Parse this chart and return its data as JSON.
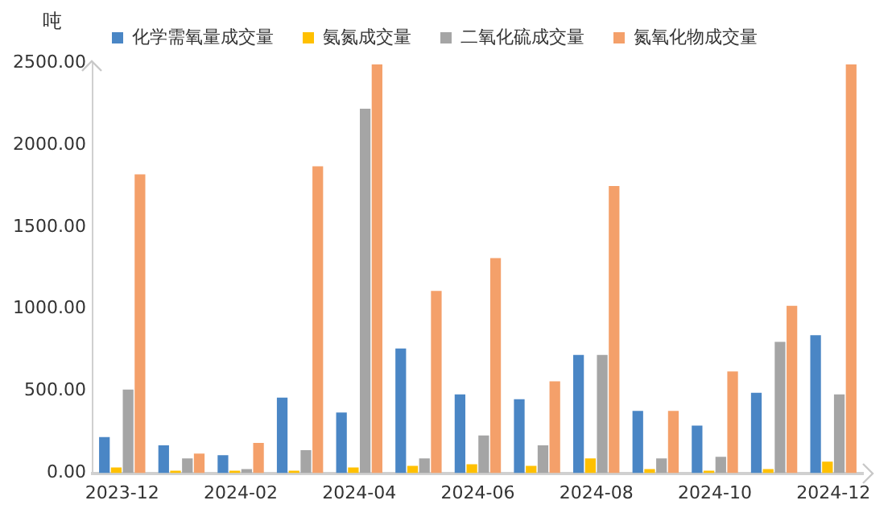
{
  "chart_data": {
    "type": "bar",
    "ylabel": "吨",
    "categories": [
      "2023-12",
      null,
      "2024-02",
      null,
      "2024-04",
      null,
      "2024-06",
      null,
      "2024-08",
      null,
      "2024-10",
      null,
      "2024-12"
    ],
    "series": [
      {
        "name": "化学需氧量成交量",
        "color": "#4a86c5",
        "values": [
          220,
          170,
          110,
          460,
          370,
          760,
          480,
          450,
          720,
          380,
          290,
          490,
          840
        ]
      },
      {
        "name": "氨氮成交量",
        "color": "#ffc000",
        "values": [
          35,
          15,
          15,
          15,
          35,
          45,
          55,
          45,
          90,
          25,
          15,
          25,
          70
        ]
      },
      {
        "name": "二氧化硫成交量",
        "color": "#a5a5a5",
        "values": [
          510,
          90,
          25,
          140,
          2220,
          90,
          230,
          170,
          720,
          90,
          100,
          800,
          480
        ]
      },
      {
        "name": "氮氧化物成交量",
        "color": "#f4a06a",
        "values": [
          1820,
          120,
          185,
          1870,
          2490,
          1110,
          1310,
          560,
          1750,
          380,
          620,
          1020,
          2490
        ]
      }
    ],
    "ylim": [
      0,
      2500
    ],
    "yticks": [
      {
        "value": 0,
        "label": "0.00"
      },
      {
        "value": 500,
        "label": "500.00"
      },
      {
        "value": 1000,
        "label": "1000.00"
      },
      {
        "value": 1500,
        "label": "1500.00"
      },
      {
        "value": 2000,
        "label": "2000.00"
      },
      {
        "value": 2500,
        "label": "2500.00"
      }
    ],
    "grid": false,
    "legend": "top"
  }
}
